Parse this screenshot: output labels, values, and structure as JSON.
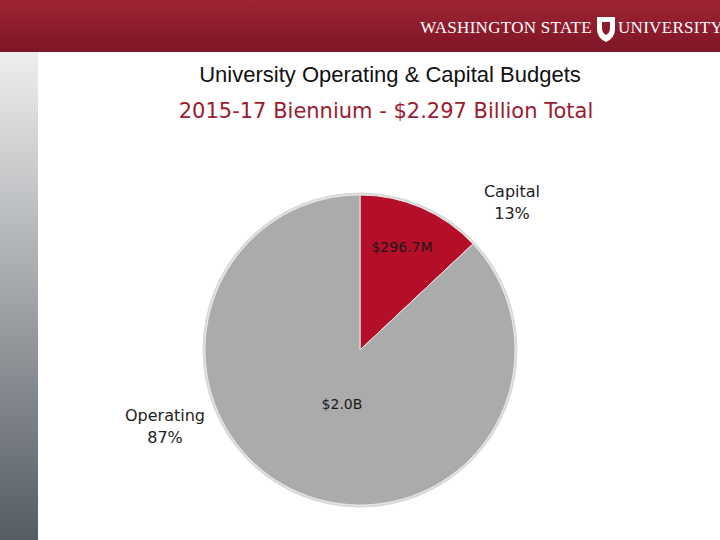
{
  "brand": [
    "WASHINGTON STATE",
    "UNIVERSITY"
  ],
  "chart_data": {
    "type": "pie",
    "title": "University Operating & Capital Budgets",
    "subtitle": "2015-17 Biennium - $2.297 Billion Total",
    "categories": [
      "Capital",
      "Operating"
    ],
    "values": [
      13,
      87
    ],
    "value_labels": [
      "13%",
      "87%"
    ],
    "amount_labels": [
      "$296.7M",
      "$2.0B"
    ],
    "colors": [
      "#a50d25",
      "#9c9c9c"
    ],
    "data_labels": true
  }
}
